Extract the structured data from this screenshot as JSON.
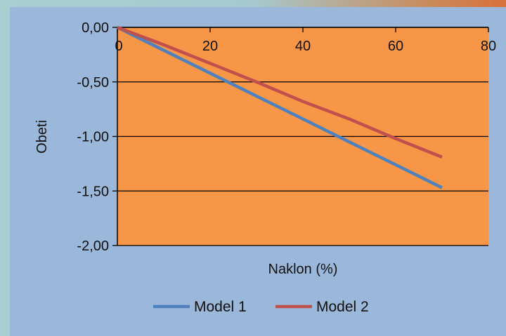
{
  "chart_data": {
    "type": "line",
    "xlabel": "Naklon (%)",
    "ylabel": "Obeti",
    "xlim": [
      0,
      80
    ],
    "ylim": [
      -2.0,
      0.0
    ],
    "x_ticks": [
      "0",
      "20",
      "40",
      "60",
      "80"
    ],
    "y_ticks": [
      "0,00",
      "-0,50",
      "-1,00",
      "-1,50",
      "-2,00"
    ],
    "grid": "horizontal",
    "legend_position": "bottom",
    "series": [
      {
        "name": "Model 1",
        "color": "#4f81bd",
        "points": [
          [
            0,
            0.0
          ],
          [
            10,
            -0.21
          ],
          [
            20,
            -0.42
          ],
          [
            30,
            -0.63
          ],
          [
            40,
            -0.84
          ],
          [
            50,
            -1.05
          ],
          [
            60,
            -1.26
          ],
          [
            70,
            -1.47
          ]
        ]
      },
      {
        "name": "Model 2",
        "color": "#c0504d",
        "points": [
          [
            0,
            0.0
          ],
          [
            10,
            -0.16
          ],
          [
            20,
            -0.33
          ],
          [
            30,
            -0.5
          ],
          [
            40,
            -0.68
          ],
          [
            50,
            -0.84
          ],
          [
            60,
            -1.02
          ],
          [
            70,
            -1.19
          ]
        ]
      }
    ],
    "plot_background": "#f79646",
    "chart_background": "#9bb7d9"
  }
}
